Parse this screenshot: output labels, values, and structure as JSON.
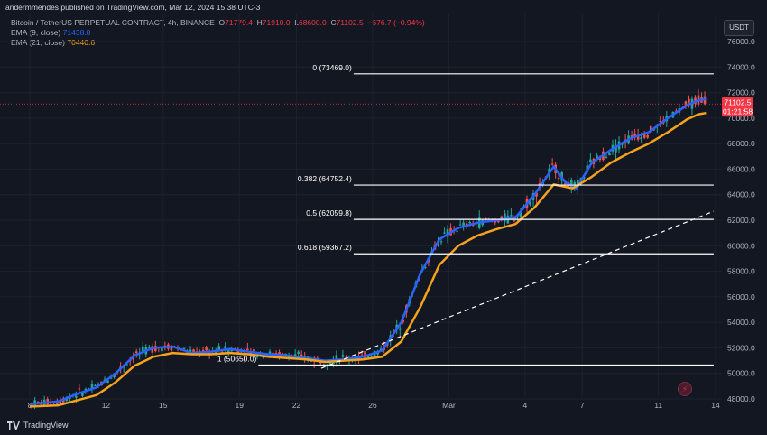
{
  "header": {
    "published": "andermmendes published on TradingView.com, Mar 12, 2024 15:38 UTC-3"
  },
  "legend": {
    "symbol": "Bitcoin / TetherUS PERPETUAL CONTRACT, 4h, BINANCE",
    "ohlc": [
      {
        "k": "O",
        "v": "71779.4"
      },
      {
        "k": "H",
        "v": "71910.0"
      },
      {
        "k": "L",
        "v": "68600.0"
      },
      {
        "k": "C",
        "v": "71102.5"
      }
    ],
    "change": "−676.7 (−0.94%)",
    "ema9_label": "EMA (9, close)",
    "ema9_value": "71438.8",
    "ema21_label": "EMA (21, close)",
    "ema21_value": "70440.6"
  },
  "currency_button": "USDT",
  "price_tag": {
    "price": "71102.5",
    "countdown": "01:21:58"
  },
  "footer": {
    "brand": "TradingView"
  },
  "colors": {
    "background": "#131722",
    "up": "#26a69a",
    "down": "#ef5350",
    "ema9": "#2962ff",
    "ema21": "#f7a21b",
    "fib_line": "#ffffff",
    "trend_line": "#ffffff",
    "price_tag": "#f23645"
  },
  "chart_data": {
    "type": "line",
    "subtype": "candlestick-with-indicators",
    "y_axis": {
      "ticks": [
        "76000.0",
        "74000.0",
        "72000.0",
        "70000.0",
        "68000.0",
        "66000.0",
        "64000.0",
        "62000.0",
        "60000.0",
        "58000.0",
        "56000.0",
        "54000.0",
        "52000.0",
        "50000.0",
        "48000.0"
      ],
      "range": [
        47000,
        77000
      ],
      "position": "right"
    },
    "x_axis": {
      "ticks": [
        "8",
        "12",
        "15",
        "19",
        "22",
        "26",
        "Mar",
        "4",
        "7",
        "11",
        "14"
      ],
      "tick_days": [
        -1.5,
        2.5,
        5.5,
        9.5,
        12.5,
        16.5,
        20.5,
        24.5,
        27.5,
        31.5,
        34.5
      ],
      "range": [
        -4,
        36
      ]
    },
    "fibonacci": [
      {
        "label": "0 (73469.0)",
        "price": 73469.0,
        "from_day": 15.5,
        "to_day": 34.4
      },
      {
        "label": "0.382 (64752.4)",
        "price": 64752.4,
        "from_day": 15.5,
        "to_day": 34.4
      },
      {
        "label": "0.5 (62059.8)",
        "price": 62059.8,
        "from_day": 15.5,
        "to_day": 34.4
      },
      {
        "label": "0.618 (59367.2)",
        "price": 59367.2,
        "from_day": 15.5,
        "to_day": 34.4
      },
      {
        "label": "1 (50650.0)",
        "price": 50650.0,
        "from_day": 10.5,
        "to_day": 34.4
      }
    ],
    "trend_line": {
      "from": [
        13.8,
        50400
      ],
      "to": [
        34.4,
        62700
      ],
      "style": "dashed"
    },
    "close_price": 71102.5,
    "series": [
      {
        "name": "EMA (9, close)",
        "color": "#2962ff",
        "points": [
          [
            -1.5,
            47600
          ],
          [
            0,
            47800
          ],
          [
            1,
            48400
          ],
          [
            2,
            48900
          ],
          [
            3,
            50000
          ],
          [
            4,
            51400
          ],
          [
            5,
            52000
          ],
          [
            6,
            52100
          ],
          [
            7,
            51600
          ],
          [
            8,
            51700
          ],
          [
            9,
            51900
          ],
          [
            10,
            51700
          ],
          [
            11,
            51500
          ],
          [
            12,
            51400
          ],
          [
            13,
            51200
          ],
          [
            14,
            51000
          ],
          [
            15,
            51100
          ],
          [
            16,
            51300
          ],
          [
            17,
            51800
          ],
          [
            18,
            54000
          ],
          [
            19,
            57800
          ],
          [
            20,
            60500
          ],
          [
            21,
            61400
          ],
          [
            22,
            61800
          ],
          [
            23,
            62000
          ],
          [
            24,
            62200
          ],
          [
            25,
            64000
          ],
          [
            26,
            66200
          ],
          [
            26.6,
            65000
          ],
          [
            27.2,
            64500
          ],
          [
            28,
            66500
          ],
          [
            29,
            67500
          ],
          [
            30,
            68400
          ],
          [
            31,
            68900
          ],
          [
            32,
            70000
          ],
          [
            33,
            71000
          ],
          [
            33.6,
            71400
          ],
          [
            34,
            71500
          ]
        ]
      },
      {
        "name": "EMA (21, close)",
        "color": "#f7a21b",
        "points": [
          [
            -1.5,
            47400
          ],
          [
            0,
            47500
          ],
          [
            1,
            47900
          ],
          [
            2,
            48300
          ],
          [
            3,
            49300
          ],
          [
            4,
            50600
          ],
          [
            5,
            51300
          ],
          [
            6,
            51600
          ],
          [
            7,
            51500
          ],
          [
            8,
            51500
          ],
          [
            9,
            51600
          ],
          [
            10,
            51500
          ],
          [
            11,
            51300
          ],
          [
            12,
            51200
          ],
          [
            13,
            51100
          ],
          [
            14,
            50900
          ],
          [
            15,
            51000
          ],
          [
            16,
            51100
          ],
          [
            17,
            51300
          ],
          [
            18,
            52500
          ],
          [
            19,
            55200
          ],
          [
            20,
            58500
          ],
          [
            21,
            60000
          ],
          [
            22,
            60800
          ],
          [
            23,
            61300
          ],
          [
            24,
            61700
          ],
          [
            25,
            63000
          ],
          [
            26,
            64800
          ],
          [
            27,
            64500
          ],
          [
            28,
            65400
          ],
          [
            29,
            66500
          ],
          [
            30,
            67300
          ],
          [
            31,
            68000
          ],
          [
            32,
            68900
          ],
          [
            33,
            69900
          ],
          [
            33.6,
            70300
          ],
          [
            34,
            70400
          ]
        ]
      }
    ],
    "candle_style": {
      "up": "#26a69a",
      "down": "#ef5350"
    }
  }
}
